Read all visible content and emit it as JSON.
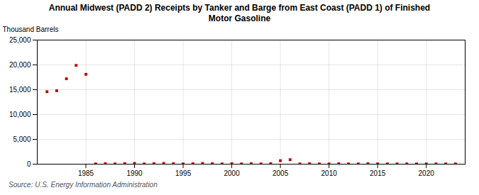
{
  "chart_data": {
    "type": "scatter",
    "title": "Annual Midwest (PADD 2) Receipts by Tanker and Barge from East Coast (PADD 1) of Finished\nMotor Gasoline",
    "ylabel": "Thousand Barrels",
    "source": "Source: U.S. Energy Information Administration",
    "color": "#c00000",
    "marker": "square",
    "grid": true,
    "x": [
      1981,
      1982,
      1983,
      1984,
      1985,
      1986,
      1987,
      1988,
      1989,
      1990,
      1991,
      1992,
      1993,
      1994,
      1995,
      1996,
      1997,
      1998,
      1999,
      2000,
      2001,
      2002,
      2003,
      2004,
      2005,
      2006,
      2007,
      2008,
      2009,
      2010,
      2011,
      2012,
      2013,
      2014,
      2015,
      2016,
      2017,
      2018,
      2019,
      2020,
      2021,
      2022,
      2023
    ],
    "values": [
      14600,
      14800,
      17200,
      19900,
      18100,
      50,
      100,
      50,
      100,
      150,
      50,
      100,
      150,
      100,
      50,
      100,
      150,
      100,
      50,
      100,
      50,
      100,
      50,
      100,
      700,
      900,
      50,
      100,
      50,
      50,
      100,
      50,
      50,
      100,
      50,
      50,
      50,
      50,
      50,
      50,
      50,
      50,
      50
    ],
    "xlim": [
      1980,
      2024
    ],
    "xticks": [
      1985,
      1990,
      1995,
      2000,
      2005,
      2010,
      2015,
      2020
    ],
    "ylim": [
      0,
      25000
    ],
    "yticks": [
      0,
      {
        "value": 5000,
        "label": "5,000"
      },
      {
        "value": 10000,
        "label": "10,000"
      },
      {
        "value": 15000,
        "label": "15,000"
      },
      {
        "value": 20000,
        "label": "20,000"
      },
      {
        "value": 25000,
        "label": "25,000"
      }
    ]
  }
}
